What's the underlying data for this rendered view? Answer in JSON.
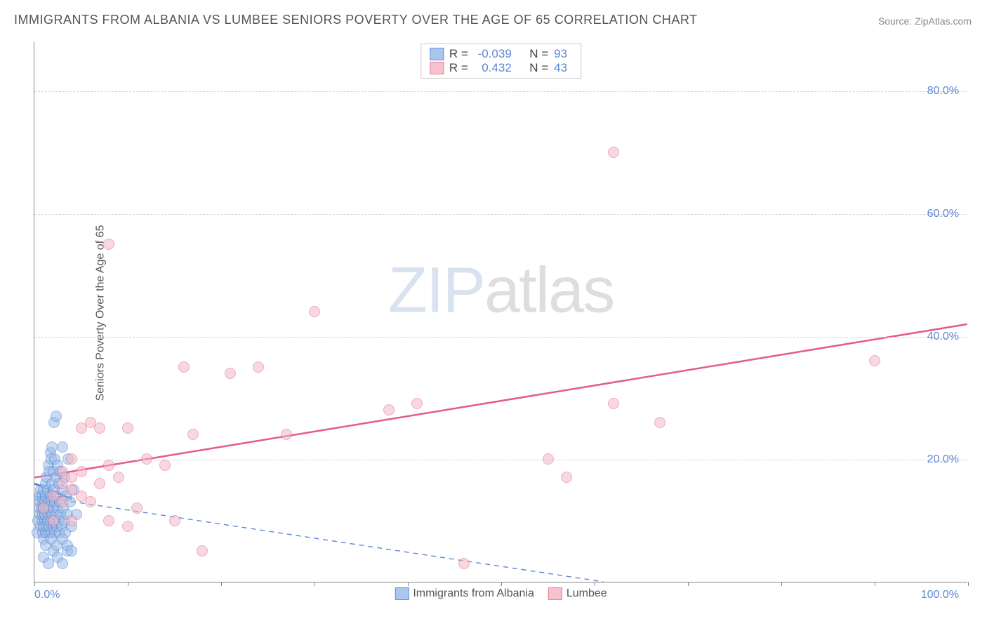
{
  "title": "IMMIGRANTS FROM ALBANIA VS LUMBEE SENIORS POVERTY OVER THE AGE OF 65 CORRELATION CHART",
  "source": "Source: ZipAtlas.com",
  "ylabel": "Seniors Poverty Over the Age of 65",
  "watermark": {
    "zip": "ZIP",
    "atlas": "atlas"
  },
  "chart": {
    "type": "scatter-with-regression",
    "background_color": "#ffffff",
    "grid_color": "#d5d5d5",
    "axis_color": "#888888",
    "xlim": [
      0,
      100
    ],
    "ylim": [
      0,
      88
    ],
    "x_tick_positions": [
      0,
      10,
      20,
      30,
      40,
      50,
      60,
      70,
      80,
      90,
      100
    ],
    "y_gridlines": [
      20,
      40,
      60,
      80
    ],
    "x_axis_label_min": "0.0%",
    "x_axis_label_max": "100.0%",
    "y_tick_labels": {
      "20": "20.0%",
      "40": "40.0%",
      "60": "60.0%",
      "80": "80.0%"
    },
    "tick_label_color": "#5b87d6",
    "tick_label_fontsize": 16,
    "title_color": "#555555",
    "title_fontsize": 18,
    "ylabel_color": "#555555",
    "ylabel_fontsize": 16,
    "series": [
      {
        "name": "Immigrants from Albania",
        "legend_label": "Immigrants from Albania",
        "R": "-0.039",
        "N": "93",
        "marker_radius": 8,
        "marker_fill": "#9dbde9",
        "marker_fill_opacity": 0.55,
        "marker_stroke": "#4a7fd1",
        "marker_stroke_width": 1.2,
        "trend_color": "#3f72c2",
        "trend_width": 2.5,
        "trend_dash": "none",
        "trend_start": [
          0,
          16
        ],
        "trend_end": [
          4,
          13.5
        ],
        "baseline_dash_color": "#5b87d6",
        "baseline_start": [
          0,
          14
        ],
        "baseline_end": [
          61,
          0
        ],
        "points": [
          [
            0.3,
            8
          ],
          [
            0.4,
            10
          ],
          [
            0.5,
            12
          ],
          [
            0.5,
            14
          ],
          [
            0.6,
            11
          ],
          [
            0.6,
            13
          ],
          [
            0.7,
            9
          ],
          [
            0.7,
            15
          ],
          [
            0.8,
            10
          ],
          [
            0.8,
            12
          ],
          [
            0.8,
            14
          ],
          [
            0.9,
            8
          ],
          [
            0.9,
            11
          ],
          [
            0.9,
            13
          ],
          [
            1.0,
            7
          ],
          [
            1.0,
            9
          ],
          [
            1.0,
            12
          ],
          [
            1.0,
            15
          ],
          [
            1.1,
            10
          ],
          [
            1.1,
            11
          ],
          [
            1.1,
            13
          ],
          [
            1.2,
            8
          ],
          [
            1.2,
            14
          ],
          [
            1.2,
            16
          ],
          [
            1.3,
            9
          ],
          [
            1.3,
            12
          ],
          [
            1.3,
            17
          ],
          [
            1.4,
            10
          ],
          [
            1.4,
            15
          ],
          [
            1.5,
            8
          ],
          [
            1.5,
            11
          ],
          [
            1.5,
            13
          ],
          [
            1.5,
            19
          ],
          [
            1.6,
            9
          ],
          [
            1.6,
            12
          ],
          [
            1.6,
            18
          ],
          [
            1.7,
            10
          ],
          [
            1.7,
            14
          ],
          [
            1.7,
            21
          ],
          [
            1.8,
            8
          ],
          [
            1.8,
            13
          ],
          [
            1.8,
            20
          ],
          [
            1.9,
            11
          ],
          [
            1.9,
            16
          ],
          [
            1.9,
            22
          ],
          [
            2.0,
            9
          ],
          [
            2.0,
            12
          ],
          [
            2.0,
            18
          ],
          [
            2.1,
            10
          ],
          [
            2.1,
            15
          ],
          [
            2.1,
            26
          ],
          [
            2.2,
            8
          ],
          [
            2.2,
            13
          ],
          [
            2.2,
            20
          ],
          [
            2.3,
            11
          ],
          [
            2.3,
            17
          ],
          [
            2.3,
            27
          ],
          [
            2.4,
            9
          ],
          [
            2.4,
            14
          ],
          [
            2.5,
            12
          ],
          [
            2.5,
            19
          ],
          [
            2.6,
            10
          ],
          [
            2.6,
            16
          ],
          [
            2.7,
            8
          ],
          [
            2.7,
            13
          ],
          [
            2.8,
            11
          ],
          [
            2.8,
            18
          ],
          [
            2.9,
            9
          ],
          [
            3.0,
            15
          ],
          [
            3.0,
            22
          ],
          [
            3.1,
            12
          ],
          [
            3.2,
            10
          ],
          [
            3.2,
            17
          ],
          [
            3.3,
            8
          ],
          [
            3.4,
            14
          ],
          [
            3.5,
            11
          ],
          [
            3.6,
            20
          ],
          [
            3.8,
            13
          ],
          [
            4.0,
            9
          ],
          [
            4.2,
            15
          ],
          [
            4.5,
            11
          ],
          [
            1.0,
            4
          ],
          [
            1.5,
            3
          ],
          [
            2.0,
            5
          ],
          [
            2.5,
            4
          ],
          [
            3.0,
            3
          ],
          [
            3.5,
            5
          ],
          [
            1.2,
            6
          ],
          [
            1.8,
            7
          ],
          [
            2.4,
            6
          ],
          [
            3.0,
            7
          ],
          [
            3.5,
            6
          ],
          [
            4.0,
            5
          ]
        ]
      },
      {
        "name": "Lumbee",
        "legend_label": "Lumbee",
        "R": "0.432",
        "N": "43",
        "marker_radius": 8,
        "marker_fill": "#f5b8c5",
        "marker_fill_opacity": 0.55,
        "marker_stroke": "#e06a8a",
        "marker_stroke_width": 1.2,
        "trend_color": "#e65a89",
        "trend_width": 2.5,
        "trend_dash": "none",
        "trend_start": [
          0,
          17
        ],
        "trend_end": [
          100,
          42
        ],
        "points": [
          [
            1,
            12
          ],
          [
            2,
            10
          ],
          [
            2,
            14
          ],
          [
            3,
            13
          ],
          [
            3,
            16
          ],
          [
            3,
            18
          ],
          [
            4,
            10
          ],
          [
            4,
            15
          ],
          [
            4,
            17
          ],
          [
            4,
            20
          ],
          [
            5,
            14
          ],
          [
            5,
            18
          ],
          [
            5,
            25
          ],
          [
            6,
            13
          ],
          [
            6,
            26
          ],
          [
            7,
            16
          ],
          [
            7,
            25
          ],
          [
            8,
            10
          ],
          [
            8,
            19
          ],
          [
            8,
            55
          ],
          [
            9,
            17
          ],
          [
            10,
            9
          ],
          [
            10,
            25
          ],
          [
            11,
            12
          ],
          [
            12,
            20
          ],
          [
            14,
            19
          ],
          [
            15,
            10
          ],
          [
            16,
            35
          ],
          [
            17,
            24
          ],
          [
            18,
            5
          ],
          [
            21,
            34
          ],
          [
            24,
            35
          ],
          [
            27,
            24
          ],
          [
            30,
            44
          ],
          [
            38,
            28
          ],
          [
            41,
            29
          ],
          [
            46,
            3
          ],
          [
            55,
            20
          ],
          [
            57,
            17
          ],
          [
            62,
            70
          ],
          [
            62,
            29
          ],
          [
            67,
            26
          ],
          [
            90,
            36
          ]
        ]
      }
    ]
  },
  "legend_top": {
    "R_label": "R =",
    "N_label": "N ="
  }
}
